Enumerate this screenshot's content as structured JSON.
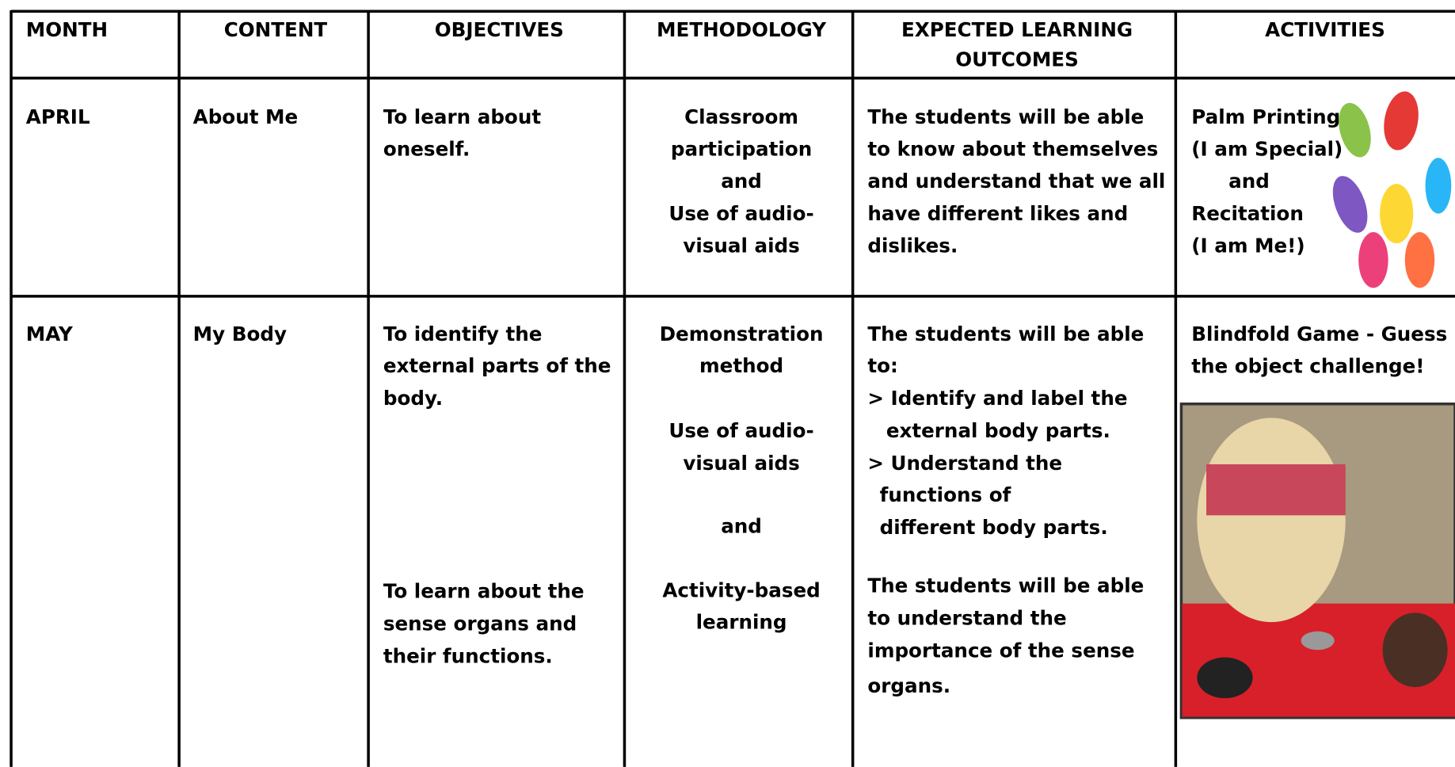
{
  "table": {
    "header": [
      [
        "MONTH"
      ],
      [
        "CONTENT"
      ],
      [
        "OBJECTIVES"
      ],
      [
        "METHODOLOGY"
      ],
      [
        "EXPECTED LEARNING",
        "OUTCOMES"
      ],
      [
        "ACTIVITIES"
      ]
    ],
    "rows": [
      [
        [
          "APRIL"
        ],
        [
          "About Me"
        ],
        [
          "To learn about",
          "oneself."
        ],
        [
          "Classroom",
          "participation",
          "and",
          "Use of audio-",
          "visual aids"
        ],
        [
          "The students will be able",
          "to know about themselves",
          "and understand that we all",
          "have different likes and",
          "dislikes."
        ],
        [
          "Palm Printing",
          "(I am Special)",
          "and",
          "Recitation",
          "(I am Me!)"
        ]
      ],
      [
        [
          "MAY"
        ],
        [
          "My Body"
        ],
        [
          "To identify the",
          "external parts of the",
          "body.",
          "To learn about the",
          "sense organs and",
          "their functions."
        ],
        [
          "Demonstration",
          "method",
          "Use of audio-",
          "visual aids",
          "and",
          "Activity-based",
          "learning"
        ],
        [
          "The students will be able",
          "to:",
          "> Identify and label the",
          "external body parts.",
          "> Understand the",
          "functions of",
          "different body parts.",
          "The students will be able",
          "to understand the",
          "importance of the sense",
          "organs."
        ],
        [
          "Blindfold Game - Guess",
          "the object challenge!"
        ]
      ]
    ]
  }
}
